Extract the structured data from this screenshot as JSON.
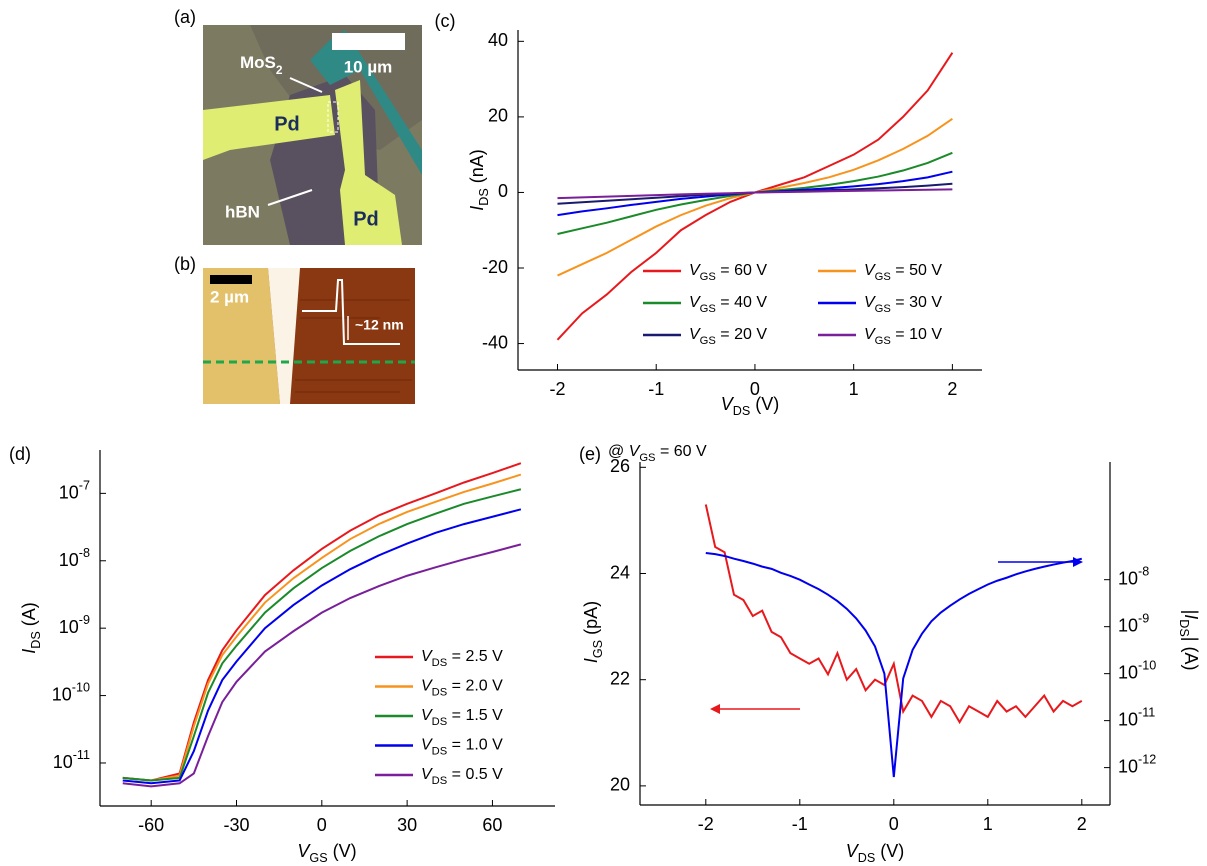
{
  "images": [
    {
      "label": "(a)",
      "scale_bar": "10 µm",
      "labels": [
        "MoS2",
        "Pd",
        "Pd",
        "hBN"
      ]
    },
    {
      "label": "(b)",
      "scale_bar": "2 µm",
      "height": "~12 nm"
    }
  ],
  "chart_data": [
    {
      "type": "line",
      "label": "(c)",
      "xlabel": "VDS (V)",
      "ylabel": "IDS (nA)",
      "x": [
        -2,
        -1.75,
        -1.5,
        -1.25,
        -1,
        -0.75,
        -0.5,
        -0.25,
        0,
        0.25,
        0.5,
        0.75,
        1,
        1.25,
        1.5,
        1.75,
        2
      ],
      "xlim": [
        -2.4,
        2.3
      ],
      "xticks": [
        -2,
        -1,
        0,
        1,
        2
      ],
      "ylim": [
        -47,
        43
      ],
      "yticks": [
        -40,
        -20,
        0,
        20,
        40
      ],
      "legend": "lower right",
      "series": [
        {
          "name": "VGS = 60 V",
          "color": "#e8191c",
          "values": [
            -39,
            -32,
            -27,
            -21,
            -16,
            -10,
            -6,
            -2.5,
            0,
            2,
            4,
            7,
            10,
            14,
            20,
            27,
            37
          ]
        },
        {
          "name": "VGS = 50 V",
          "color": "#f7941d",
          "values": [
            -22,
            -19,
            -16,
            -12.5,
            -9,
            -6,
            -3.5,
            -1.5,
            0,
            1.2,
            2.5,
            4,
            6,
            8.5,
            11.5,
            15,
            19.5
          ]
        },
        {
          "name": "VGS = 40 V",
          "color": "#1a8a2a",
          "values": [
            -11,
            -9.5,
            -8,
            -6.3,
            -4.6,
            -3.2,
            -2,
            -0.9,
            0,
            0.6,
            1.2,
            2,
            3,
            4.2,
            5.8,
            7.8,
            10.5
          ]
        },
        {
          "name": "VGS = 30 V",
          "color": "#0000ee",
          "values": [
            -6,
            -5,
            -4.2,
            -3.3,
            -2.5,
            -1.7,
            -1.1,
            -0.5,
            0,
            0.3,
            0.7,
            1.1,
            1.6,
            2.2,
            3,
            4,
            5.5
          ]
        },
        {
          "name": "VGS = 20 V",
          "color": "#1a1a6e",
          "values": [
            -3,
            -2.6,
            -2.2,
            -1.8,
            -1.4,
            -1,
            -0.6,
            -0.3,
            0,
            0.2,
            0.4,
            0.6,
            0.8,
            1.1,
            1.4,
            1.8,
            2.3
          ]
        },
        {
          "name": "VGS = 10 V",
          "color": "#7a1f9a",
          "values": [
            -1.5,
            -1.3,
            -1.1,
            -0.9,
            -0.7,
            -0.5,
            -0.35,
            -0.2,
            0,
            0.1,
            0.2,
            0.3,
            0.4,
            0.5,
            0.6,
            0.7,
            0.8
          ]
        }
      ]
    },
    {
      "type": "line",
      "label": "(d)",
      "xlabel": "VGS (V)",
      "ylabel": "IDS (A)",
      "x": [
        -70,
        -60,
        -50,
        -45,
        -40,
        -35,
        -30,
        -20,
        -10,
        0,
        10,
        20,
        30,
        40,
        50,
        60,
        70
      ],
      "xlim": [
        -78,
        82
      ],
      "xticks": [
        -60,
        -30,
        0,
        30,
        60
      ],
      "ylog": true,
      "ylim": [
        2.3e-12,
        4.4e-07
      ],
      "yticks": [
        {
          "value": 1e-11,
          "label": "10-11"
        },
        {
          "value": 1e-10,
          "label": "10-10"
        },
        {
          "value": 1e-09,
          "label": "10-9"
        },
        {
          "value": 1e-08,
          "label": "10-8"
        },
        {
          "value": 1e-07,
          "label": "10-7"
        }
      ],
      "legend": "lower right",
      "series": [
        {
          "name": "VDS = 2.5 V",
          "color": "#e8191c",
          "values": [
            6e-12,
            5.5e-12,
            7e-12,
            4e-11,
            1.7e-10,
            4.7e-10,
            9.3e-10,
            3.1e-09,
            7.2e-09,
            1.5e-08,
            2.8e-08,
            4.7e-08,
            7e-08,
            1e-07,
            1.45e-07,
            2e-07,
            2.8e-07
          ]
        },
        {
          "name": "VDS = 2.0 V",
          "color": "#f7941d",
          "values": [
            6e-12,
            5.5e-12,
            6.5e-12,
            3.5e-11,
            1.5e-10,
            4e-10,
            7.5e-10,
            2.4e-09,
            5.5e-09,
            1.1e-08,
            2.1e-08,
            3.5e-08,
            5.3e-08,
            7.5e-08,
            1.05e-07,
            1.4e-07,
            1.9e-07
          ]
        },
        {
          "name": "VDS = 1.5 V",
          "color": "#1a8a2a",
          "values": [
            6e-12,
            5.5e-12,
            6e-12,
            2.5e-11,
            1.1e-10,
            3e-10,
            5.5e-10,
            1.7e-09,
            3.9e-09,
            7.8e-09,
            1.4e-08,
            2.3e-08,
            3.5e-08,
            5e-08,
            7e-08,
            9e-08,
            1.15e-07
          ]
        },
        {
          "name": "VDS = 1.0 V",
          "color": "#0000ee",
          "values": [
            5.5e-12,
            5e-12,
            5.5e-12,
            1.5e-11,
            6e-11,
            1.7e-10,
            3.2e-10,
            1e-09,
            2.2e-09,
            4.3e-09,
            7.5e-09,
            1.2e-08,
            1.8e-08,
            2.6e-08,
            3.5e-08,
            4.5e-08,
            5.8e-08
          ]
        },
        {
          "name": "VDS = 0.5 V",
          "color": "#7a1f9a",
          "values": [
            5e-12,
            4.5e-12,
            5e-12,
            7e-12,
            2.5e-11,
            8e-11,
            1.6e-10,
            4.5e-10,
            9e-10,
            1.7e-09,
            2.8e-09,
            4.2e-09,
            6e-09,
            8e-09,
            1.05e-08,
            1.35e-08,
            1.75e-08
          ]
        }
      ]
    },
    {
      "type": "line",
      "label": "(e)",
      "annotation": "@ VGS = 60 V",
      "xlabel": "VDS (V)",
      "ylabel": "IGS (pA)",
      "y2label": "|IDS| (A)",
      "x": [
        -2,
        -1.9,
        -1.8,
        -1.7,
        -1.6,
        -1.5,
        -1.4,
        -1.3,
        -1.2,
        -1.1,
        -1,
        -0.9,
        -0.8,
        -0.7,
        -0.6,
        -0.5,
        -0.4,
        -0.3,
        -0.2,
        -0.1,
        0,
        0.1,
        0.2,
        0.3,
        0.4,
        0.5,
        0.6,
        0.7,
        0.8,
        0.9,
        1,
        1.1,
        1.2,
        1.3,
        1.4,
        1.5,
        1.6,
        1.7,
        1.8,
        1.9,
        2
      ],
      "xlim": [
        -2.7,
        2.3
      ],
      "xticks": [
        -2,
        -1,
        0,
        1,
        2
      ],
      "ylim": [
        19.64,
        26.1
      ],
      "yticks": [
        20,
        22,
        24,
        26
      ],
      "y2log": true,
      "y2lim": [
        1.6e-13,
        3.2e-06
      ],
      "y2ticks": [
        {
          "value": 1e-12,
          "label": "10-12"
        },
        {
          "value": 1e-11,
          "label": "10-11"
        },
        {
          "value": 1e-10,
          "label": "10-10"
        },
        {
          "value": 1e-09,
          "label": "10-9"
        },
        {
          "value": 1e-08,
          "label": "10-8"
        }
      ],
      "series": [
        {
          "color": "#e8191c",
          "values": [
            25.3,
            24.5,
            24.4,
            23.6,
            23.5,
            23.2,
            23.3,
            22.9,
            22.8,
            22.5,
            22.4,
            22.3,
            22.4,
            22.1,
            22.5,
            22.0,
            22.2,
            21.8,
            22.0,
            21.9,
            22.3,
            21.4,
            21.7,
            21.6,
            21.3,
            21.6,
            21.5,
            21.2,
            21.5,
            21.4,
            21.3,
            21.6,
            21.4,
            21.5,
            21.3,
            21.5,
            21.7,
            21.4,
            21.6,
            21.5,
            21.6
          ]
        },
        {
          "color": "#0000ee",
          "axis": "y2",
          "values": [
            3.7e-08,
            3.5e-08,
            3.2e-08,
            2.8e-08,
            2.5e-08,
            2.2e-08,
            1.9e-08,
            1.7e-08,
            1.4e-08,
            1.2e-08,
            1e-08,
            7.9e-09,
            6.3e-09,
            4.8e-09,
            3.5e-09,
            2.4e-09,
            1.5e-09,
            8.3e-10,
            3.8e-10,
            1e-10,
            6.3e-13,
            7.9e-11,
            3.2e-10,
            7.1e-10,
            1.3e-09,
            2e-09,
            2.8e-09,
            3.8e-09,
            5e-09,
            6.3e-09,
            7.9e-09,
            9.5e-09,
            1.1e-08,
            1.3e-08,
            1.5e-08,
            1.7e-08,
            1.9e-08,
            2.1e-08,
            2.3e-08,
            2.5e-08,
            2.8e-08
          ]
        }
      ]
    }
  ]
}
